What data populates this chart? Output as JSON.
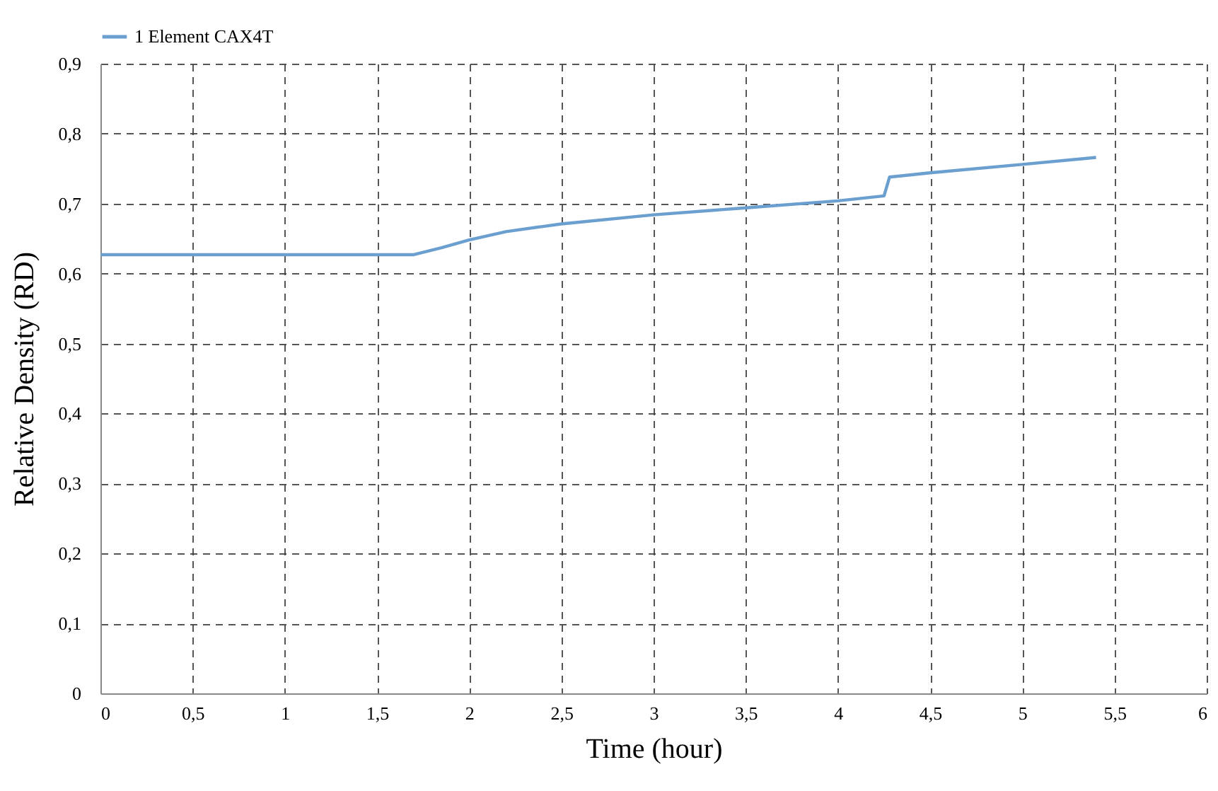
{
  "chart_data": {
    "type": "line",
    "xlabel": "Time (hour)",
    "ylabel": "Relative Density (RD)",
    "x": [
      0,
      1.7,
      1.85,
      2,
      2.2,
      2.5,
      3,
      3.5,
      4,
      4.25,
      4.28,
      4.5,
      5,
      5.4
    ],
    "series": [
      {
        "name": "1 Element CAX4T",
        "color": "#6a9fcf",
        "values": [
          0.627,
          0.627,
          0.637,
          0.648,
          0.66,
          0.671,
          0.684,
          0.694,
          0.704,
          0.711,
          0.738,
          0.744,
          0.756,
          0.766
        ]
      }
    ],
    "xlim": [
      0,
      6
    ],
    "ylim": [
      0,
      0.9
    ],
    "xticks": [
      0,
      {
        "value": 0.5,
        "label": "0,5"
      },
      1,
      {
        "value": 1.5,
        "label": "1,5"
      },
      2,
      {
        "value": 2.5,
        "label": "2,5"
      },
      3,
      {
        "value": 3.5,
        "label": "3,5"
      },
      4,
      {
        "value": 4.5,
        "label": "4,5"
      },
      5,
      {
        "value": 5.5,
        "label": "5,5"
      },
      6
    ],
    "yticks": [
      0,
      {
        "value": 0.1,
        "label": "0,1"
      },
      {
        "value": 0.2,
        "label": "0,2"
      },
      {
        "value": 0.3,
        "label": "0,3"
      },
      {
        "value": 0.4,
        "label": "0,4"
      },
      {
        "value": 0.5,
        "label": "0,5"
      },
      {
        "value": 0.6,
        "label": "0,6"
      },
      {
        "value": 0.7,
        "label": "0,7"
      },
      {
        "value": 0.8,
        "label": "0,8"
      },
      {
        "value": 0.9,
        "label": "0,9"
      }
    ],
    "grid": true,
    "legend": "top",
    "line_style": "solid",
    "marker": "none"
  }
}
